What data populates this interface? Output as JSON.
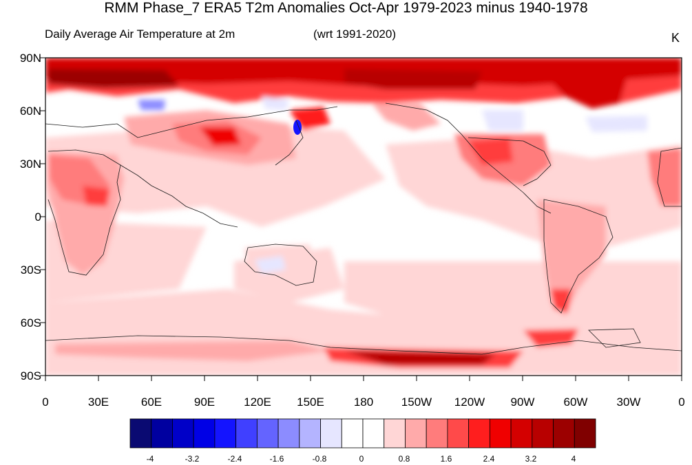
{
  "title": "RMM Phase_7 ERA5 T2m Anomalies Oct-Apr 1979-2023 minus 1940-1978",
  "subtitle_left": "Daily Average Air Temperature at 2m",
  "subtitle_mid": "(wrt 1991-2020)",
  "units": "K",
  "lat_labels": [
    "90N",
    "60N",
    "30N",
    "0",
    "30S",
    "60S",
    "90S"
  ],
  "lon_labels": [
    "0",
    "30E",
    "60E",
    "90E",
    "120E",
    "150E",
    "180",
    "150W",
    "120W",
    "90W",
    "60W",
    "30W",
    "0"
  ],
  "colorbar": {
    "colors": [
      "#0a0a72",
      "#0000a0",
      "#0000c8",
      "#0000e6",
      "#1414ff",
      "#4040ff",
      "#6464ff",
      "#8c8cff",
      "#b4b4ff",
      "#e6e6ff",
      "#ffffff",
      "#ffffff",
      "#ffd6d6",
      "#ffaaaa",
      "#ff7c7c",
      "#ff4a4a",
      "#ff1e1e",
      "#f00000",
      "#d40000",
      "#b80000",
      "#9c0000",
      "#800000"
    ],
    "tick_labels": [
      "-4",
      "-3.2",
      "-2.4",
      "-1.6",
      "-0.8",
      "0",
      "0.8",
      "1.6",
      "2.4",
      "3.2",
      "4"
    ]
  },
  "colors": {
    "strong_warm": "#b40000",
    "warm": "#ff3c3c",
    "mild_warm": "#ffaaaa",
    "weak_warm": "#ffd6d6",
    "neutral": "#ffffff",
    "weak_cool": "#e6e6ff",
    "cool": "#6464ff"
  }
}
